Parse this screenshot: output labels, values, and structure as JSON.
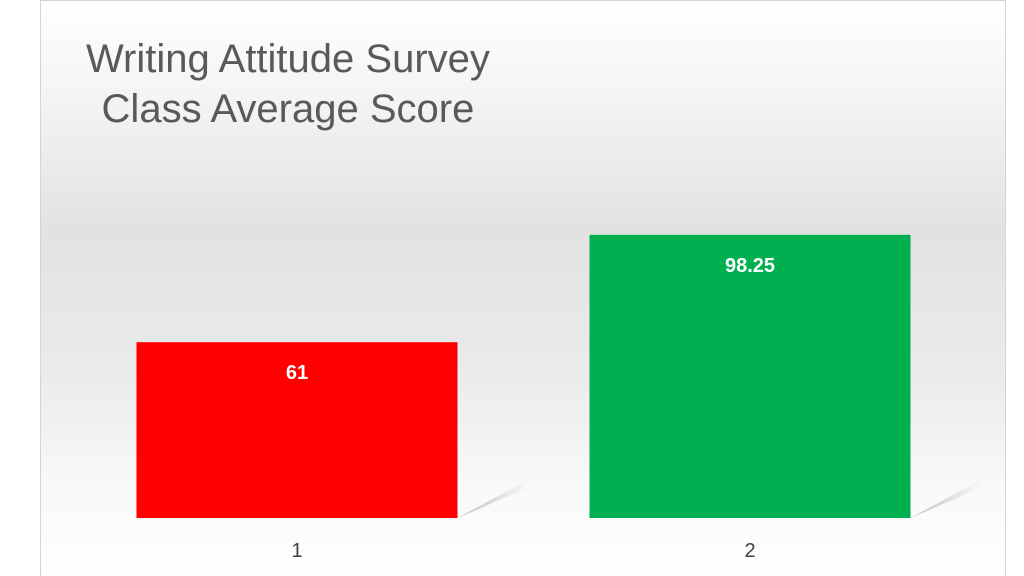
{
  "chart_data": {
    "type": "bar",
    "title": "Writing Attitude Survey",
    "subtitle": "Class Average Score",
    "categories": [
      "1",
      "2"
    ],
    "values": [
      61,
      98.25
    ],
    "bar_colors": [
      "#ff0000",
      "#00b050"
    ],
    "data_labels": [
      "61",
      "98.25"
    ],
    "grid": false,
    "legend": "none"
  }
}
